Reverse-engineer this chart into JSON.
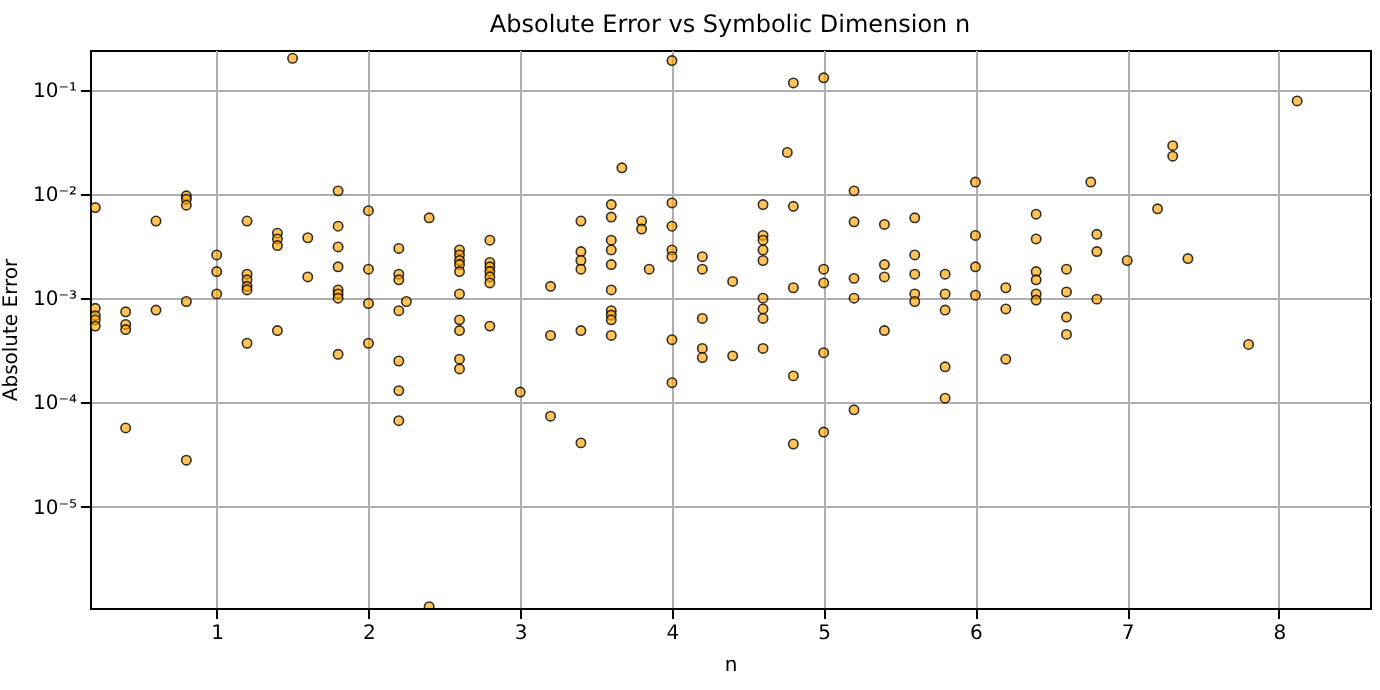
{
  "chart_data": {
    "type": "scatter",
    "title": "Absolute Error vs Symbolic Dimension n",
    "xlabel": "n",
    "ylabel": "Absolute Error",
    "x": [
      0.2,
      0.2,
      0.2,
      0.2,
      0.2,
      0.4,
      0.4,
      0.4,
      0.4,
      0.6,
      0.6,
      0.8,
      0.8,
      0.8,
      0.8,
      0.8,
      1.0,
      1.0,
      1.0,
      1.2,
      1.2,
      1.2,
      1.2,
      1.2,
      1.2,
      1.4,
      1.4,
      1.4,
      1.4,
      1.5,
      1.6,
      1.6,
      1.8,
      1.8,
      1.8,
      1.8,
      1.8,
      1.8,
      1.8,
      1.8,
      2.0,
      2.0,
      2.0,
      2.0,
      2.2,
      2.2,
      2.2,
      2.2,
      2.2,
      2.2,
      2.2,
      2.25,
      2.4,
      2.4,
      2.6,
      2.6,
      2.6,
      2.6,
      2.6,
      2.6,
      2.6,
      2.6,
      2.6,
      2.6,
      2.8,
      2.8,
      2.8,
      2.8,
      2.8,
      2.8,
      2.8,
      3.0,
      3.2,
      3.2,
      3.2,
      3.4,
      3.4,
      3.4,
      3.4,
      3.4,
      3.4,
      3.6,
      3.6,
      3.6,
      3.6,
      3.6,
      3.6,
      3.6,
      3.6,
      3.6,
      3.6,
      3.67,
      3.8,
      3.8,
      3.85,
      4.0,
      4.0,
      4.0,
      4.0,
      4.0,
      4.0,
      4.0,
      4.2,
      4.2,
      4.2,
      4.2,
      4.2,
      4.4,
      4.4,
      4.6,
      4.6,
      4.6,
      4.6,
      4.6,
      4.6,
      4.6,
      4.6,
      4.6,
      4.76,
      4.8,
      4.8,
      4.8,
      4.8,
      4.8,
      5.0,
      5.0,
      5.0,
      5.0,
      5.0,
      5.2,
      5.2,
      5.2,
      5.2,
      5.2,
      5.4,
      5.4,
      5.4,
      5.4,
      5.6,
      5.6,
      5.6,
      5.6,
      5.6,
      5.8,
      5.8,
      5.8,
      5.8,
      5.8,
      6.0,
      6.0,
      6.0,
      6.0,
      6.2,
      6.2,
      6.2,
      6.4,
      6.4,
      6.4,
      6.4,
      6.4,
      6.4,
      6.6,
      6.6,
      6.6,
      6.6,
      6.76,
      6.8,
      6.8,
      6.8,
      7.0,
      7.2,
      7.3,
      7.3,
      7.4,
      7.8,
      8.12
    ],
    "values": [
      0.0074,
      0.0008,
      0.00068,
      0.00062,
      0.00054,
      0.00074,
      0.00056,
      0.0005,
      5.7e-05,
      0.0055,
      0.00077,
      0.0096,
      0.0089,
      0.0078,
      0.00093,
      2.8e-05,
      0.0026,
      0.0018,
      0.0011,
      0.0055,
      0.0017,
      0.0015,
      0.0013,
      0.0012,
      0.00037,
      0.0042,
      0.0037,
      0.0032,
      0.00049,
      0.2,
      0.0038,
      0.0016,
      0.0107,
      0.0049,
      0.0031,
      0.002,
      0.0012,
      0.0011,
      0.001,
      0.00029,
      0.0069,
      0.0019,
      0.00089,
      0.00037,
      0.003,
      0.0017,
      0.0015,
      0.00076,
      0.00025,
      0.00013,
      6.7e-05,
      0.00093,
      0.0059,
      1.1e-06,
      0.0029,
      0.0026,
      0.0023,
      0.0021,
      0.0018,
      0.0011,
      0.00062,
      0.00049,
      0.00026,
      0.00021,
      0.0036,
      0.0022,
      0.002,
      0.0018,
      0.0016,
      0.0014,
      0.00054,
      0.000126,
      0.0013,
      0.00044,
      7.4e-05,
      0.0055,
      0.0028,
      0.0023,
      0.0019,
      0.00049,
      4.1e-05,
      0.0079,
      0.006,
      0.0036,
      0.0029,
      0.0021,
      0.0012,
      0.00076,
      0.00069,
      0.00062,
      0.00044,
      0.0178,
      0.0055,
      0.0046,
      0.0019,
      0.19,
      0.0082,
      0.0049,
      0.0029,
      0.0025,
      0.0004,
      0.000155,
      0.0025,
      0.0019,
      0.00064,
      0.00033,
      0.00027,
      0.00145,
      0.00028,
      0.0079,
      0.004,
      0.0036,
      0.0029,
      0.0023,
      0.001,
      0.00079,
      0.00064,
      0.00033,
      0.025,
      0.116,
      0.0076,
      0.00126,
      0.00018,
      4e-05,
      0.13,
      0.0019,
      0.0014,
      0.0003,
      5.2e-05,
      0.0107,
      0.0054,
      0.00155,
      0.001,
      8.5e-05,
      0.0051,
      0.0021,
      0.0016,
      0.00049,
      0.0059,
      0.0026,
      0.0017,
      0.0011,
      0.00093,
      0.0017,
      0.0011,
      0.00077,
      0.00022,
      0.00011,
      0.013,
      0.004,
      0.002,
      0.00107,
      0.00126,
      0.00079,
      0.00026,
      0.0064,
      0.0037,
      0.0018,
      0.0015,
      0.0011,
      0.00096,
      0.0019,
      0.00115,
      0.00066,
      0.00045,
      0.013,
      0.0041,
      0.0028,
      0.00098,
      0.0023,
      0.0072,
      0.029,
      0.023,
      0.0024,
      0.00036,
      0.078
    ],
    "color": "#ffa500",
    "marker": "circle",
    "log": "y",
    "grid": true,
    "xlim": [
      0.165,
      8.6
    ],
    "xticks": [
      1,
      2,
      3,
      4,
      5,
      6,
      7,
      8
    ],
    "ylim": [
      1.07e-06,
      0.24
    ],
    "yticks": [
      {
        "value": 1e-05,
        "label": "10⁻⁵"
      },
      {
        "value": 0.0001,
        "label": "10⁻⁴"
      },
      {
        "value": 0.001,
        "label": "10⁻³"
      },
      {
        "value": 0.01,
        "label": "10⁻²"
      },
      {
        "value": 0.1,
        "label": "10⁻¹"
      }
    ]
  }
}
